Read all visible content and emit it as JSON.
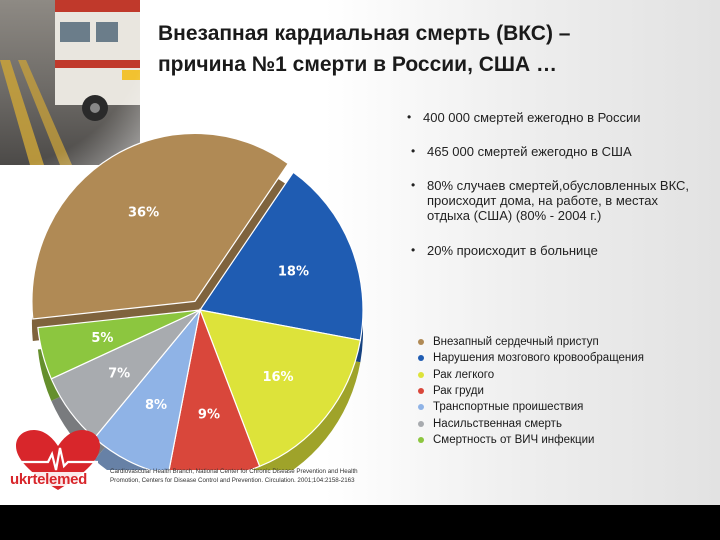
{
  "title": {
    "line1": "Внезапная кардиальная смерть (ВКС) –",
    "line2": "причина №1 смерти в России, США …"
  },
  "bullets": [
    "400 000 смертей ежегодно в России",
    "465 000 смертей ежегодно в США",
    "80% случаев смертей,обусловленных ВКС, происходит дома, на работе, в местах отдыха (США) (80% - 2004 г.)",
    "20% происходит в больнице"
  ],
  "source": "Cardiovascular Health Branch, National Center for Chronic Disease Prevention and Health Promotion, Centers for Disease Control and Prevention. Circulation. 2001;104:2158-2163",
  "logo": {
    "text": "ukrtelemed"
  },
  "colors": {
    "brown": "#b08a55",
    "blue": "#1f5cb2",
    "yellow": "#dde33a",
    "red": "#d9473b",
    "lightblue": "#8fb3e6",
    "grey": "#a8abaf",
    "green": "#8cc63f",
    "logo_red": "#d8262b"
  },
  "chart_data": {
    "type": "pie",
    "slices": [
      {
        "label": "Внезапный сердечный приступ",
        "value": 36,
        "display": "36%",
        "color": "#b08a55"
      },
      {
        "label": "Нарушения мозгового кровообращения",
        "value": 18,
        "display": "18%",
        "color": "#1f5cb2"
      },
      {
        "label": "Рак легкого",
        "value": 16,
        "display": "16%",
        "color": "#dde33a"
      },
      {
        "label": "Рак груди",
        "value": 9,
        "display": "9%",
        "color": "#d9473b"
      },
      {
        "label": "Транспортные проишествия",
        "value": 8,
        "display": "8%",
        "color": "#8fb3e6"
      },
      {
        "label": "Насильственная смерть",
        "value": 7,
        "display": "7%",
        "color": "#a8abaf"
      },
      {
        "label": "Смертность от ВИЧ инфекции",
        "value": 5,
        "display": "5%",
        "color": "#8cc63f"
      }
    ],
    "exploded": "Внезапный сердечный приступ",
    "legend_position": "bottom-right"
  }
}
